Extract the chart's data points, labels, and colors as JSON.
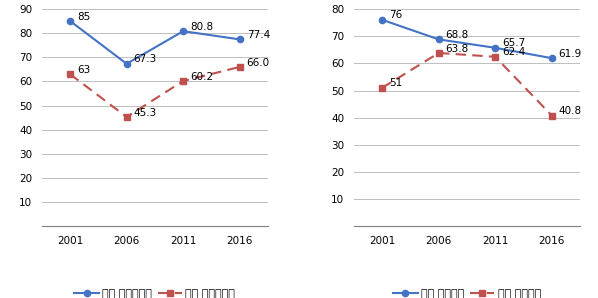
{
  "years": [
    2001,
    2006,
    2011,
    2016
  ],
  "chart1": {
    "male": [
      85,
      67.3,
      80.8,
      77.4
    ],
    "female": [
      63,
      45.3,
      60.2,
      66.0
    ],
    "male_labels": [
      "85",
      "67.3",
      "80.8",
      "77.4"
    ],
    "female_labels": [
      "63",
      "45.3",
      "60.2",
      "66.0"
    ],
    "ylim": [
      0,
      90
    ],
    "yticks": [
      0,
      10,
      20,
      30,
      40,
      50,
      60,
      70,
      80,
      90
    ],
    "legend_male": "男性 正社員試み",
    "legend_female": "女性 正社員試み"
  },
  "chart2": {
    "male": [
      76,
      68.8,
      65.7,
      61.9
    ],
    "female": [
      51,
      63.8,
      62.4,
      40.8
    ],
    "male_labels": [
      "76",
      "68.8",
      "65.7",
      "61.9"
    ],
    "female_labels": [
      "51",
      "63.8",
      "62.4",
      "40.8"
    ],
    "ylim": [
      0,
      80
    ],
    "yticks": [
      0,
      10,
      20,
      30,
      40,
      50,
      60,
      70,
      80
    ],
    "legend_male": "男性 正社員化",
    "legend_female": "女性 正社員化"
  },
  "male_color": "#4472C4",
  "female_color": "#C0504D",
  "bg_color": "#FFFFFF",
  "grid_color": "#BFBFBF",
  "label_fontsize": 7.5,
  "tick_fontsize": 7.5,
  "legend_fontsize": 8
}
